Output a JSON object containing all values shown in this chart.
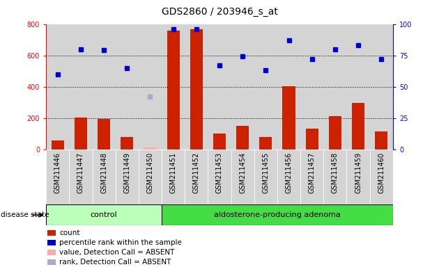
{
  "title": "GDS2860 / 203946_s_at",
  "samples": [
    "GSM211446",
    "GSM211447",
    "GSM211448",
    "GSM211449",
    "GSM211450",
    "GSM211451",
    "GSM211452",
    "GSM211453",
    "GSM211454",
    "GSM211455",
    "GSM211456",
    "GSM211457",
    "GSM211458",
    "GSM211459",
    "GSM211460"
  ],
  "bar_values": [
    60,
    205,
    195,
    80,
    15,
    760,
    765,
    100,
    150,
    80,
    405,
    135,
    215,
    295,
    115
  ],
  "bar_absent": [
    false,
    false,
    false,
    false,
    true,
    false,
    false,
    false,
    false,
    false,
    false,
    false,
    false,
    false,
    false
  ],
  "rank_values": [
    60,
    80,
    79,
    65,
    42,
    96,
    96,
    67,
    74,
    63,
    87,
    72,
    80,
    83,
    72
  ],
  "rank_absent": [
    false,
    false,
    false,
    false,
    true,
    false,
    false,
    false,
    false,
    false,
    false,
    false,
    false,
    false,
    false
  ],
  "bar_color": "#cc2200",
  "bar_absent_color": "#ffaaaa",
  "rank_color": "#0000cc",
  "rank_absent_color": "#aaaacc",
  "ylim_left": [
    0,
    800
  ],
  "ylim_right": [
    0,
    100
  ],
  "yticks_left": [
    0,
    200,
    400,
    600,
    800
  ],
  "yticks_right": [
    0,
    25,
    50,
    75,
    100
  ],
  "control_count": 5,
  "adenoma_count": 10,
  "group_label_control": "control",
  "group_label_adenoma": "aldosterone-producing adenoma",
  "disease_state_label": "disease state",
  "legend_items": [
    {
      "label": "count",
      "color": "#cc2200"
    },
    {
      "label": "percentile rank within the sample",
      "color": "#0000cc"
    },
    {
      "label": "value, Detection Call = ABSENT",
      "color": "#ffaaaa"
    },
    {
      "label": "rank, Detection Call = ABSENT",
      "color": "#aaaacc"
    }
  ],
  "cell_bg": "#d4d4d4",
  "plot_bg": "#ffffff",
  "group_bg_control": "#bbffbb",
  "group_bg_adenoma": "#44dd44",
  "title_fontsize": 10,
  "tick_fontsize": 7,
  "bar_width": 0.55
}
